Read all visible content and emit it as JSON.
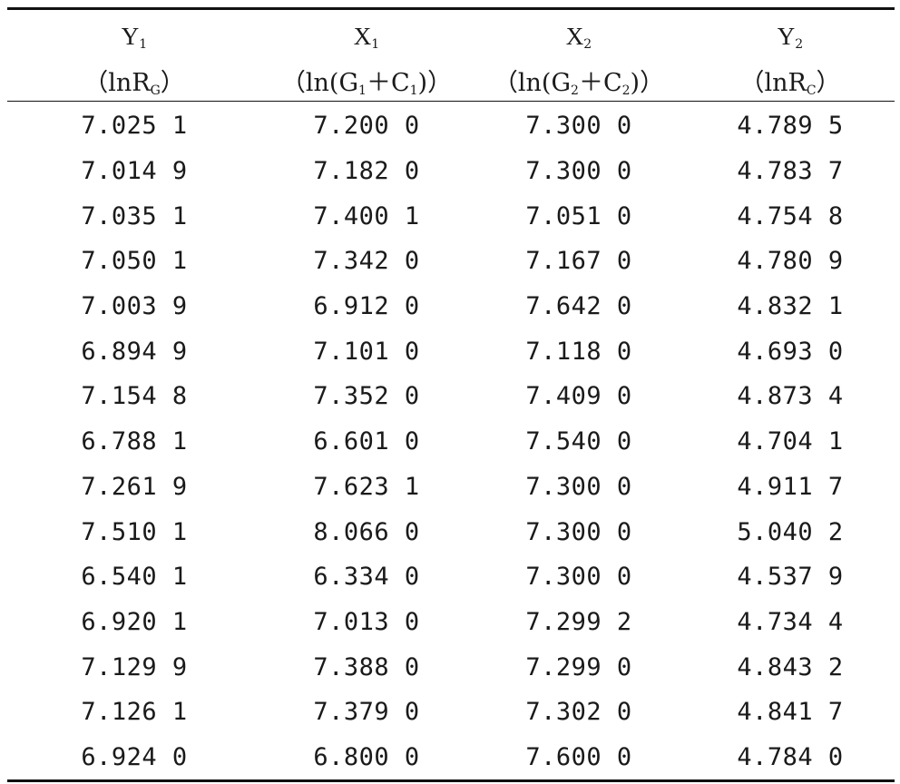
{
  "table": {
    "columns": [
      {
        "var_base": "Y",
        "var_sub": "1",
        "paren_open": "（",
        "pre": "lnR",
        "pre_sub": "G",
        "mid": "",
        "mid_sub": "",
        "paren_close": "）"
      },
      {
        "var_base": "X",
        "var_sub": "1",
        "paren_open": "（",
        "pre": "ln(G",
        "pre_sub": "1",
        "mid": "＋C",
        "mid_sub": "1",
        "paren_close": ")）"
      },
      {
        "var_base": "X",
        "var_sub": "2",
        "paren_open": "（",
        "pre": "ln(G",
        "pre_sub": "2",
        "mid": "＋C",
        "mid_sub": "2",
        "paren_close": ")）"
      },
      {
        "var_base": "Y",
        "var_sub": "2",
        "paren_open": "（",
        "pre": "lnR",
        "pre_sub": "C",
        "mid": "",
        "mid_sub": "",
        "paren_close": "）"
      }
    ],
    "rows": [
      [
        "7.025 1",
        "7.200 0",
        "7.300 0",
        "4.789 5"
      ],
      [
        "7.014 9",
        "7.182 0",
        "7.300 0",
        "4.783 7"
      ],
      [
        "7.035 1",
        "7.400 1",
        "7.051 0",
        "4.754 8"
      ],
      [
        "7.050 1",
        "7.342 0",
        "7.167 0",
        "4.780 9"
      ],
      [
        "7.003 9",
        "6.912 0",
        "7.642 0",
        "4.832 1"
      ],
      [
        "6.894 9",
        "7.101 0",
        "7.118 0",
        "4.693 0"
      ],
      [
        "7.154 8",
        "7.352 0",
        "7.409 0",
        "4.873 4"
      ],
      [
        "6.788 1",
        "6.601 0",
        "7.540 0",
        "4.704 1"
      ],
      [
        "7.261 9",
        "7.623 1",
        "7.300 0",
        "4.911 7"
      ],
      [
        "7.510 1",
        "8.066 0",
        "7.300 0",
        "5.040 2"
      ],
      [
        "6.540 1",
        "6.334 0",
        "7.300 0",
        "4.537 9"
      ],
      [
        "6.920 1",
        "7.013 0",
        "7.299 2",
        "4.734 4"
      ],
      [
        "7.129 9",
        "7.388 0",
        "7.299 0",
        "4.843 2"
      ],
      [
        "7.126 1",
        "7.379 0",
        "7.302 0",
        "4.841 7"
      ],
      [
        "6.924 0",
        "6.800 0",
        "7.600 0",
        "4.784 0"
      ]
    ]
  }
}
